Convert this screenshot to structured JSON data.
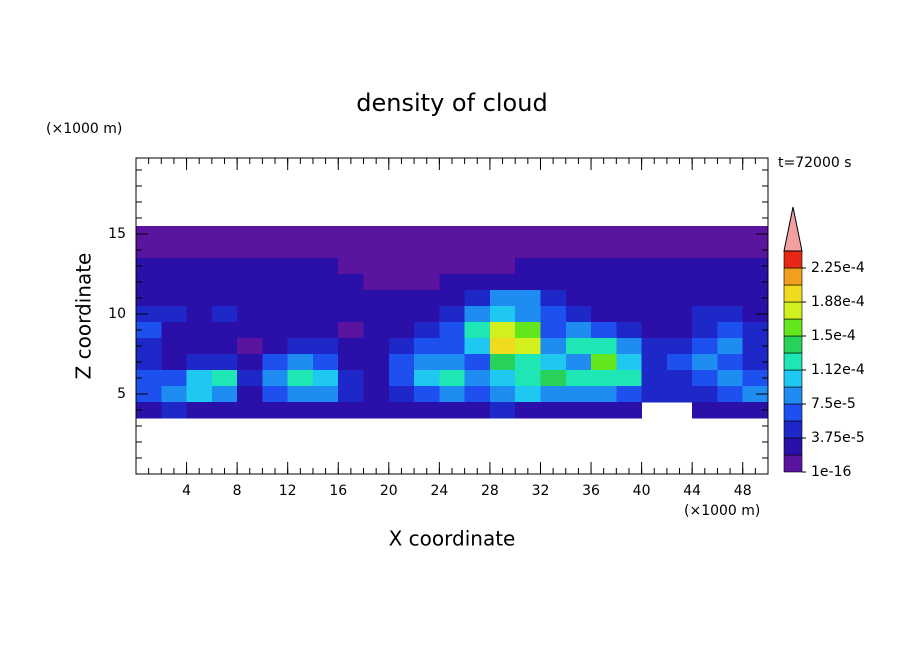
{
  "chart_data": {
    "type": "contour",
    "title": "density of cloud",
    "x_label": "X coordinate",
    "y_label": "Z coordinate",
    "x_unit": "(×1000 m)",
    "y_unit": "(×1000 m)",
    "annotation": "t=72000 s",
    "xlim": [
      0,
      50
    ],
    "xticks": [
      4,
      8,
      12,
      16,
      20,
      24,
      28,
      32,
      36,
      40,
      44,
      48
    ],
    "ylim": [
      0,
      19.75
    ],
    "yticks": [
      5,
      10,
      15
    ],
    "x": [
      1,
      3,
      5,
      7,
      9,
      11,
      13,
      15,
      17,
      19,
      21,
      23,
      25,
      27,
      29,
      31,
      33,
      35,
      37,
      39,
      41,
      43,
      45,
      47,
      49
    ],
    "y": [
      15,
      14,
      13,
      12,
      11,
      10,
      9,
      8,
      7,
      6,
      5,
      4
    ],
    "values": [
      [
        1e-16,
        1e-16,
        1e-16,
        1e-16,
        1e-16,
        1e-16,
        1e-16,
        1e-16,
        1e-16,
        1e-16,
        1e-16,
        1e-16,
        1e-16,
        1e-16,
        1e-16,
        1e-16,
        1e-16,
        1e-16,
        1e-16,
        1e-16,
        1e-16,
        1e-16,
        1e-16,
        1e-16,
        1e-16
      ],
      [
        1e-16,
        1e-16,
        1e-16,
        1e-16,
        1e-16,
        1e-16,
        1e-16,
        1e-16,
        1e-16,
        1e-16,
        1e-16,
        1e-16,
        1e-16,
        1e-16,
        1e-16,
        1e-16,
        1e-16,
        1e-16,
        1e-16,
        1e-16,
        1e-16,
        1e-16,
        1e-16,
        1e-16,
        1e-16
      ],
      [
        2e-05,
        2e-05,
        2e-05,
        2e-05,
        2e-05,
        2e-05,
        2e-05,
        2e-05,
        1e-16,
        1e-16,
        1e-16,
        1e-16,
        1e-16,
        1e-16,
        1e-16,
        2e-05,
        2e-05,
        2e-05,
        2e-05,
        2e-05,
        2e-05,
        2e-05,
        2e-05,
        2e-05,
        2e-05
      ],
      [
        2e-05,
        2e-05,
        2e-05,
        2e-05,
        2e-05,
        2e-05,
        2e-05,
        2e-05,
        2e-05,
        1e-16,
        1e-16,
        1e-16,
        3e-05,
        3e-05,
        3e-05,
        3e-05,
        3e-05,
        3e-05,
        2e-05,
        2e-05,
        2e-05,
        2e-05,
        2e-05,
        2e-05,
        2e-05
      ],
      [
        2e-05,
        2e-05,
        2e-05,
        2e-05,
        2e-05,
        2e-05,
        2e-05,
        2e-05,
        2e-05,
        2e-05,
        2e-05,
        2e-05,
        3e-05,
        5e-05,
        9e-05,
        8e-05,
        5e-05,
        2e-05,
        2e-05,
        2e-05,
        2e-05,
        2e-05,
        2e-05,
        2e-05,
        2e-05
      ],
      [
        4e-05,
        4e-05,
        2e-05,
        4e-05,
        2e-05,
        2e-05,
        2e-05,
        2e-05,
        2e-05,
        2e-05,
        2e-05,
        3e-05,
        5e-05,
        8e-05,
        0.0001,
        9e-05,
        6e-05,
        4e-05,
        3e-05,
        2e-05,
        2e-05,
        2e-05,
        4e-05,
        5e-05,
        3e-05
      ],
      [
        6e-05,
        3e-05,
        2e-05,
        2e-05,
        3e-05,
        2e-05,
        3e-05,
        2e-05,
        1e-16,
        2e-05,
        3e-05,
        5e-05,
        7e-05,
        0.00012,
        0.00017,
        0.00015,
        7e-05,
        8e-05,
        6e-05,
        4e-05,
        2e-05,
        3e-05,
        5e-05,
        6e-05,
        4e-05
      ],
      [
        5e-05,
        3e-05,
        2e-05,
        2e-05,
        1e-16,
        3e-05,
        5e-05,
        4e-05,
        2e-05,
        3e-05,
        5e-05,
        7e-05,
        6e-05,
        0.00011,
        0.00019,
        0.00017,
        9e-05,
        0.00012,
        0.00013,
        8e-05,
        4e-05,
        5e-05,
        7e-05,
        8e-05,
        5e-05
      ],
      [
        4e-05,
        3e-05,
        5e-05,
        4e-05,
        2e-05,
        6e-05,
        8e-05,
        7e-05,
        3e-05,
        2e-05,
        6e-05,
        9e-05,
        8e-05,
        7e-05,
        0.00014,
        0.00013,
        0.0001,
        9e-05,
        0.00015,
        0.0001,
        5e-05,
        6e-05,
        9e-05,
        7e-05,
        5e-05
      ],
      [
        6e-05,
        7e-05,
        0.00011,
        0.00013,
        4e-05,
        9e-05,
        0.00012,
        0.0001,
        4e-05,
        2e-05,
        6e-05,
        0.00011,
        0.00013,
        8e-05,
        0.00011,
        0.00012,
        0.00014,
        0.00013,
        0.00012,
        0.00013,
        5e-05,
        4e-05,
        7e-05,
        8e-05,
        6e-05
      ],
      [
        7e-05,
        9e-05,
        0.0001,
        9e-05,
        3e-05,
        7e-05,
        8e-05,
        9e-05,
        5e-05,
        3e-05,
        5e-05,
        7e-05,
        9e-05,
        6e-05,
        8e-05,
        0.0001,
        9e-05,
        8e-05,
        9e-05,
        7e-05,
        4e-05,
        4e-05,
        5e-05,
        7e-05,
        8e-05
      ],
      [
        3e-05,
        4e-05,
        3e-05,
        3e-05,
        2e-05,
        2e-05,
        3e-05,
        3e-05,
        2e-05,
        2e-05,
        3e-05,
        3e-05,
        3e-05,
        3e-05,
        4e-05,
        3e-05,
        3e-05,
        3e-05,
        3e-05,
        2e-05,
        null,
        null,
        2e-05,
        3e-05,
        3e-05
      ]
    ],
    "levels": [
      1e-16,
      1.875e-05,
      3.75e-05,
      5.625e-05,
      7.5e-05,
      9.375e-05,
      0.0001125,
      0.00013125,
      0.00015,
      0.00016875,
      0.0001875,
      0.00020625,
      0.000225,
      0.00024375
    ],
    "colors": [
      "#5a14a0",
      "#2a10a8",
      "#1e28c8",
      "#1e50f0",
      "#1e8cf0",
      "#1ec8f0",
      "#1ee6b4",
      "#28d25a",
      "#64e61e",
      "#d2f01e",
      "#f0dc1e",
      "#f0a01e",
      "#e62814"
    ],
    "extend_color": "#f4a0a0",
    "colorbar_ticks": [
      1e-16,
      {
        "value": 3.75e-05,
        "label": "3.75e-5"
      },
      {
        "value": 7.5e-05,
        "label": "7.5e-5"
      },
      {
        "value": 0.0001125,
        "label": "1.12e-4"
      },
      {
        "value": 0.00015,
        "label": "1.5e-4"
      },
      {
        "value": 0.0001875,
        "label": "1.88e-4"
      },
      {
        "value": 0.000225,
        "label": "2.25e-4"
      }
    ]
  }
}
